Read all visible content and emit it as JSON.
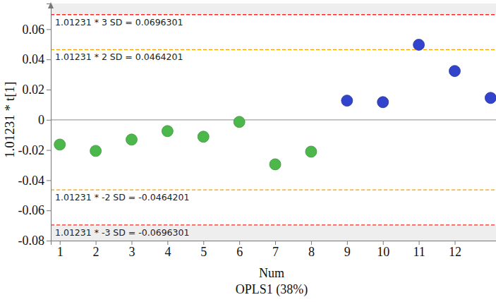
{
  "chart_data": {
    "type": "scatter",
    "y_label": "1.01231 * t[1]",
    "x_label": "Num",
    "subtitle": "OPLS1 (38%)",
    "x": [
      1,
      2,
      3,
      4,
      5,
      6,
      7,
      8,
      9,
      10,
      11,
      12,
      13
    ],
    "values": [
      -0.0164,
      -0.0206,
      -0.0131,
      -0.0075,
      -0.0112,
      -0.0014,
      -0.0295,
      -0.0211,
      0.0127,
      0.0117,
      0.0497,
      0.0323,
      0.0145
    ],
    "colors": [
      "#4cb84c",
      "#4cb84c",
      "#4cb84c",
      "#4cb84c",
      "#4cb84c",
      "#4cb84c",
      "#4cb84c",
      "#4cb84c",
      "#3344cc",
      "#3344cc",
      "#3344cc",
      "#3344cc",
      "#3344cc"
    ],
    "marker": "circle",
    "xlim": [
      0.75,
      13.15
    ],
    "xticks": [
      1,
      2,
      3,
      4,
      5,
      6,
      7,
      8,
      9,
      10,
      11,
      12
    ],
    "ylim": [
      -0.08,
      0.077
    ],
    "yticks": [
      -0.08,
      -0.06,
      -0.04,
      -0.02,
      0,
      0.02,
      0.04,
      0.06
    ],
    "grid": false,
    "reference_lines": [
      {
        "value": 0.0696301,
        "label": "1.01231 * 3 SD = 0.0696301",
        "color": "#e8302a",
        "line_style": "dashed"
      },
      {
        "value": 0.0464201,
        "label": "1.01231 * 2 SD = 0.0464201",
        "color": "#f5a000",
        "line_style": "dashed"
      },
      {
        "value": 0,
        "color": "#a0a0a0",
        "line_style": "solid"
      },
      {
        "value": -0.0464201,
        "label": "1.01231 * -2 SD = -0.0464201",
        "color": "#f5a000",
        "line_style": "dashed"
      },
      {
        "value": -0.0696301,
        "label": "1.01231 * -3 SD = -0.0696301",
        "color": "#e8302a",
        "line_style": "dashed"
      }
    ]
  }
}
